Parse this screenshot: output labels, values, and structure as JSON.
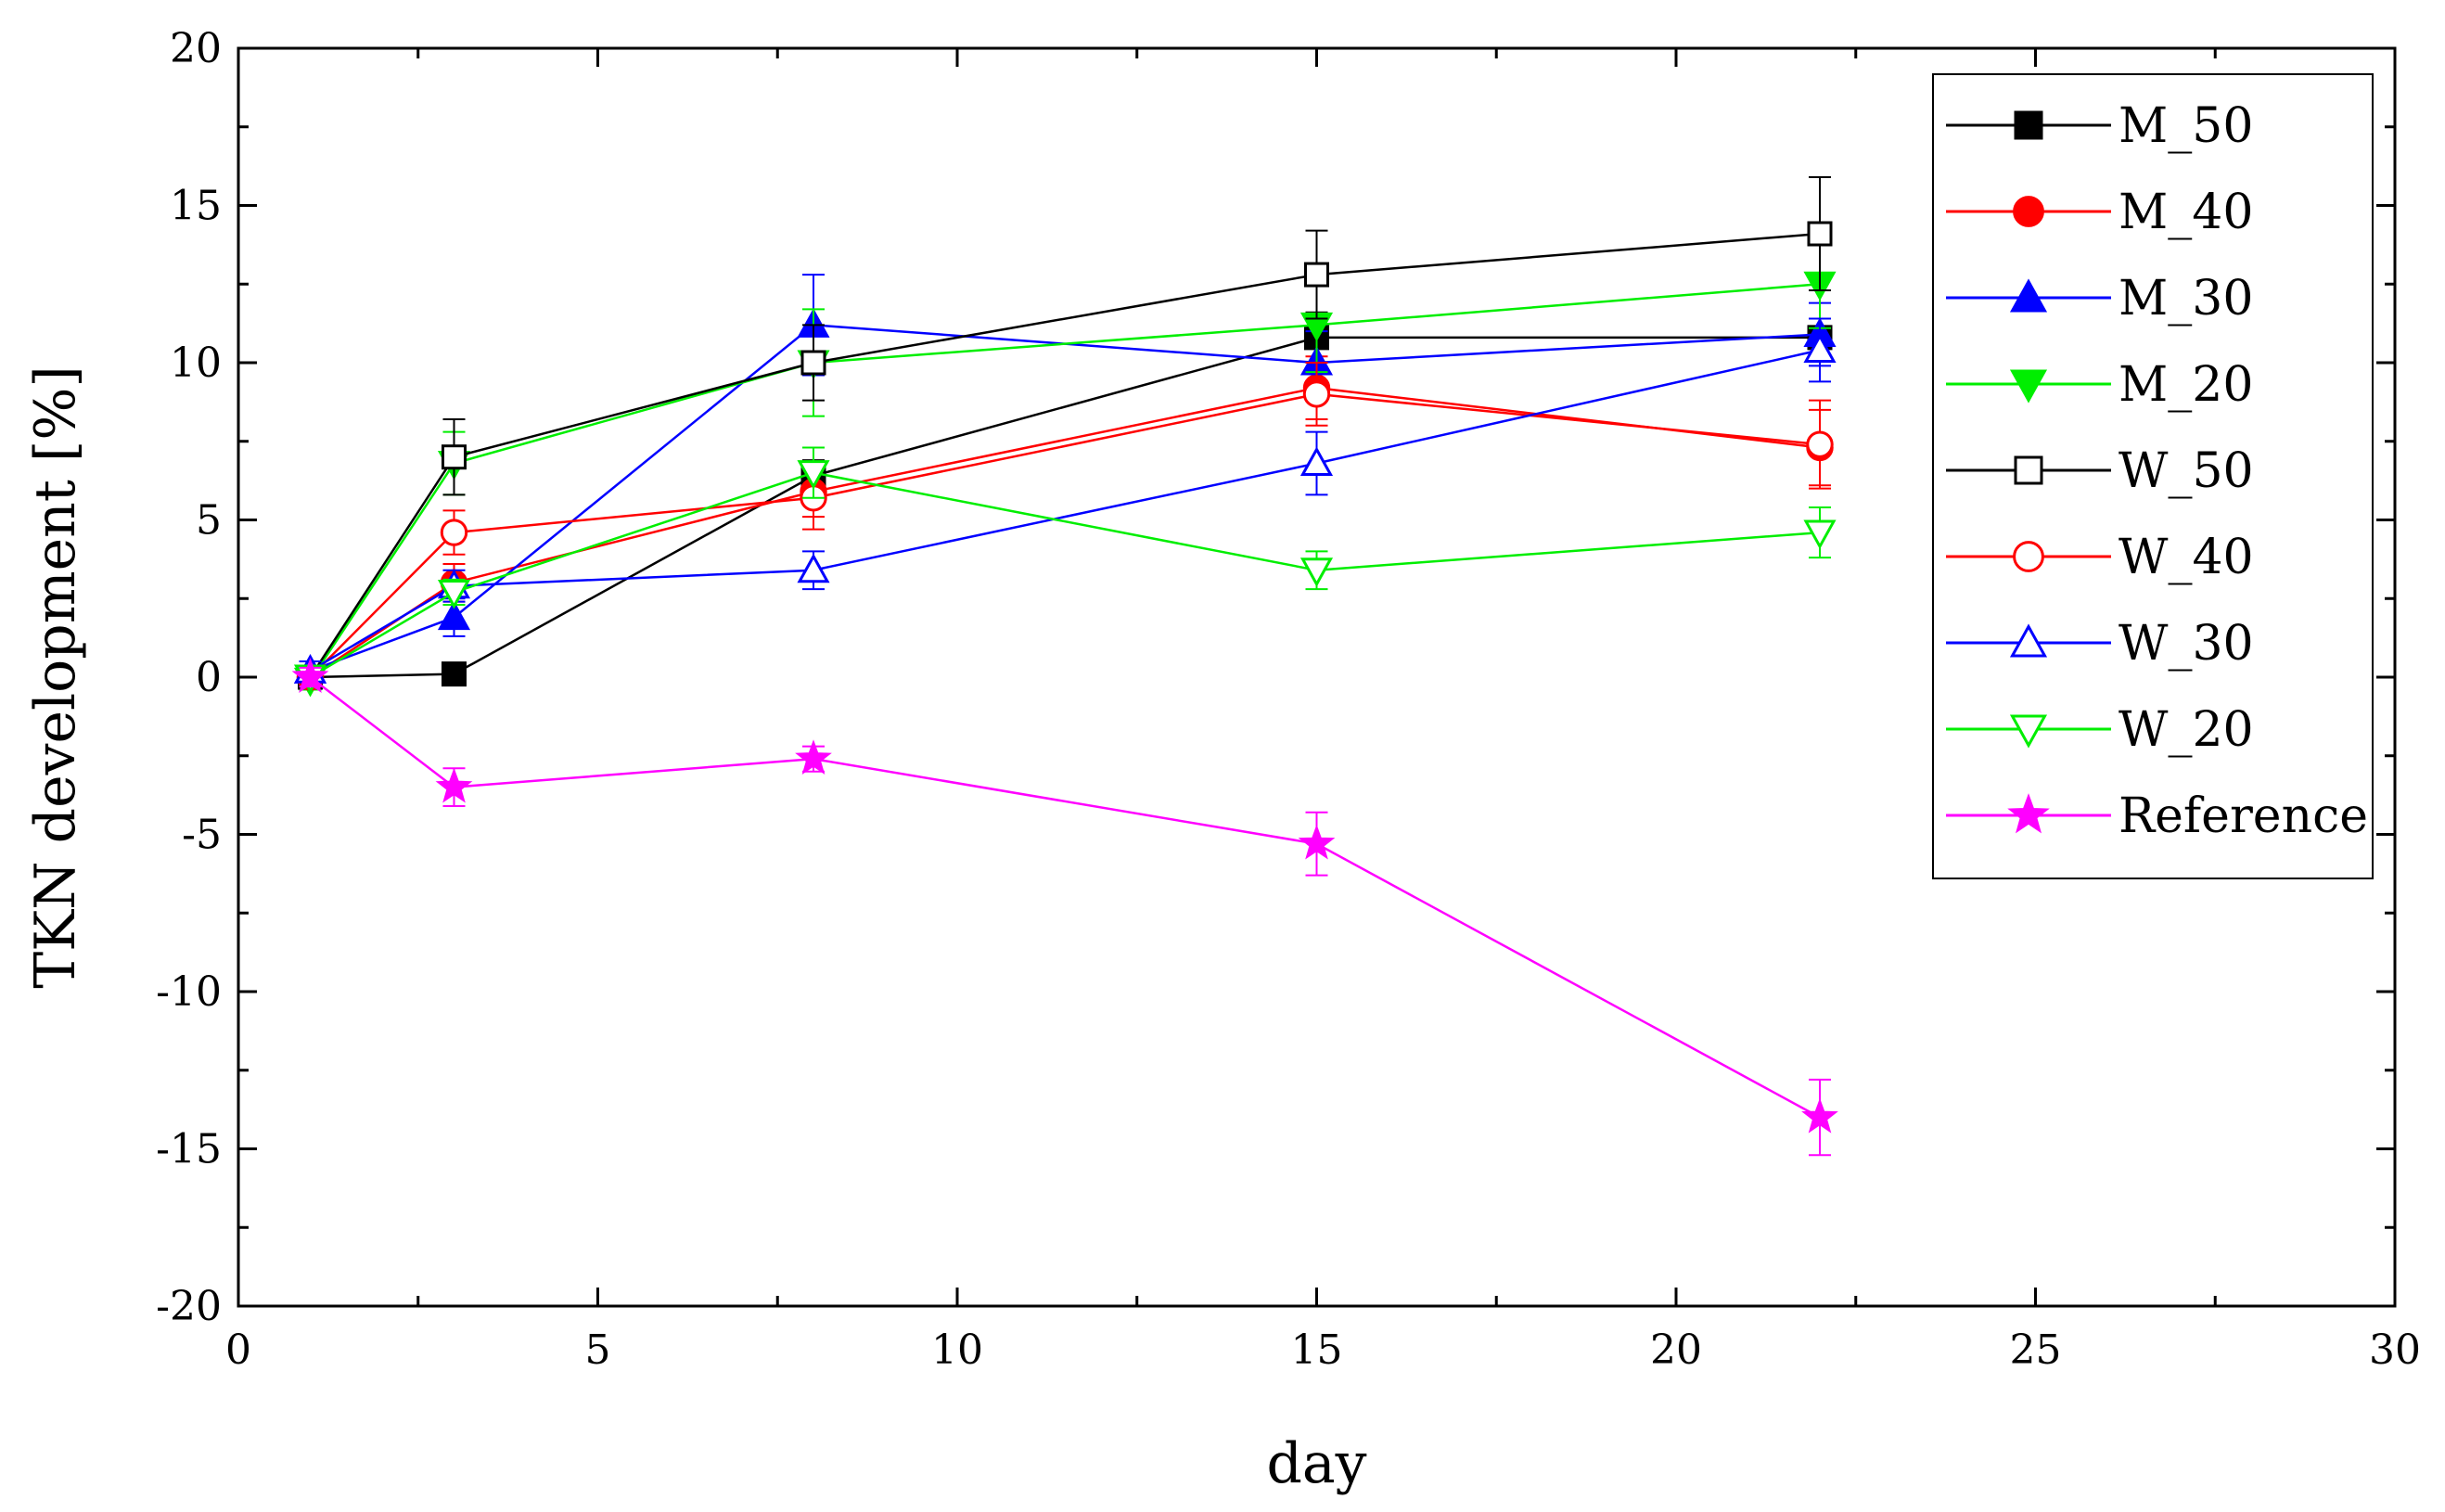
{
  "chart_data": {
    "type": "line",
    "title": "",
    "xlabel": "day",
    "ylabel": "TKN development [%]",
    "xlim": [
      0,
      30
    ],
    "ylim": [
      -20,
      20
    ],
    "xticks": [
      0,
      5,
      10,
      15,
      20,
      25,
      30
    ],
    "yticks": [
      -20,
      -15,
      -10,
      -5,
      0,
      5,
      10,
      15,
      20
    ],
    "xtick_labels": [
      "0",
      "5",
      "10",
      "15",
      "20",
      "25",
      "30"
    ],
    "ytick_labels": [
      "-20",
      "-15",
      "-10",
      "-5",
      "0",
      "5",
      "10",
      "15",
      "20"
    ],
    "grid": false,
    "legend_position": "top-right",
    "x": [
      1,
      3,
      8,
      15,
      22
    ],
    "series": [
      {
        "name": "M_50",
        "color": "#000000",
        "marker": "square",
        "filled": true,
        "values": [
          0,
          0.1,
          6.4,
          10.8,
          10.8
        ],
        "errors": [
          0.3,
          0.3,
          0.5,
          0.8,
          0.6
        ]
      },
      {
        "name": "M_40",
        "color": "#ff0000",
        "marker": "circle",
        "filled": true,
        "values": [
          0,
          3.0,
          5.9,
          9.2,
          7.3
        ],
        "errors": [
          0.3,
          0.6,
          0.8,
          1.0,
          1.2
        ]
      },
      {
        "name": "M_30",
        "color": "#0000ff",
        "marker": "triangle-up",
        "filled": true,
        "values": [
          0.2,
          1.9,
          11.2,
          10.0,
          10.9
        ],
        "errors": [
          0.3,
          0.6,
          1.6,
          1.0,
          1.0
        ]
      },
      {
        "name": "M_20",
        "color": "#00ee00",
        "marker": "triangle-down",
        "filled": true,
        "values": [
          -0.1,
          6.8,
          10.0,
          11.2,
          12.5
        ],
        "errors": [
          0.3,
          1.0,
          1.7,
          1.5,
          1.4
        ]
      },
      {
        "name": "W_50",
        "color": "#000000",
        "marker": "square",
        "filled": false,
        "values": [
          0,
          7.0,
          10.0,
          12.8,
          14.1
        ],
        "errors": [
          0.3,
          1.2,
          1.2,
          1.4,
          1.8
        ]
      },
      {
        "name": "W_40",
        "color": "#ff0000",
        "marker": "circle",
        "filled": false,
        "values": [
          0,
          4.6,
          5.7,
          9.0,
          7.4
        ],
        "errors": [
          0.3,
          0.7,
          1.0,
          1.0,
          1.4
        ]
      },
      {
        "name": "W_30",
        "color": "#0000ff",
        "marker": "triangle-up",
        "filled": false,
        "values": [
          0.2,
          2.9,
          3.4,
          6.8,
          10.4
        ],
        "errors": [
          0.3,
          0.5,
          0.6,
          1.0,
          1.0
        ]
      },
      {
        "name": "W_20",
        "color": "#00ee00",
        "marker": "triangle-down",
        "filled": false,
        "values": [
          0,
          2.7,
          6.5,
          3.4,
          4.6
        ],
        "errors": [
          0.3,
          0.4,
          0.8,
          0.6,
          0.8
        ]
      },
      {
        "name": "Reference",
        "color": "#ff00ff",
        "marker": "star",
        "filled": true,
        "values": [
          0,
          -3.5,
          -2.6,
          -5.3,
          -14.0
        ],
        "errors": [
          0.3,
          0.6,
          0.4,
          1.0,
          1.2
        ]
      }
    ]
  }
}
